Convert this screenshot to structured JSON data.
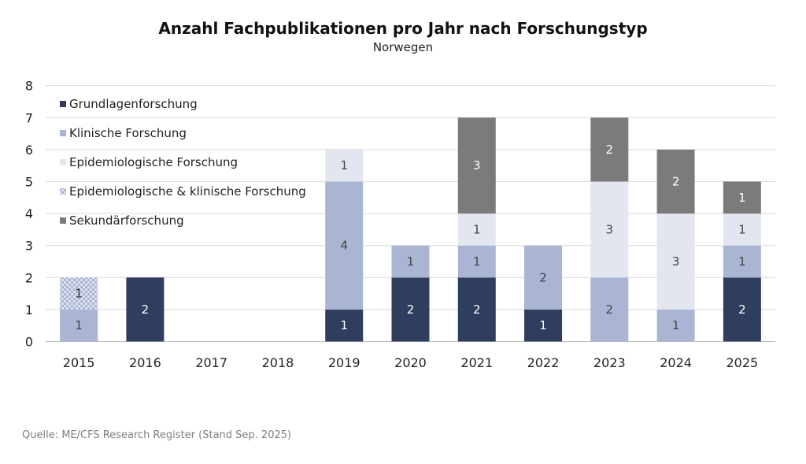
{
  "chart_data": {
    "type": "bar",
    "stacked": true,
    "title": "Anzahl Fachpublikationen pro Jahr nach Forschungstyp",
    "subtitle": "Norwegen",
    "source": "Quelle: ME/CFS Research Register (Stand Sep. 2025)",
    "categories": [
      "2015",
      "2016",
      "2017",
      "2018",
      "2019",
      "2020",
      "2021",
      "2022",
      "2023",
      "2024",
      "2025"
    ],
    "ylim": [
      0,
      8
    ],
    "yticks": [
      0,
      1,
      2,
      3,
      4,
      5,
      6,
      7,
      8
    ],
    "grid": true,
    "legend_position": "top-left",
    "series": [
      {
        "name": "Grundlagenforschung",
        "color": "#2f3d5e",
        "label_color": "#ffffff",
        "values": [
          0,
          2,
          0,
          0,
          1,
          2,
          2,
          1,
          0,
          0,
          2
        ]
      },
      {
        "name": "Klinische Forschung",
        "color": "#aab5d3",
        "label_color": "#444444",
        "values": [
          1,
          0,
          0,
          0,
          4,
          1,
          1,
          2,
          2,
          1,
          1
        ]
      },
      {
        "name": "Epidemiologische Forschung",
        "color": "#e3e6ef",
        "label_color": "#444444",
        "values": [
          0,
          0,
          0,
          0,
          1,
          0,
          1,
          0,
          3,
          3,
          1
        ]
      },
      {
        "name": "Epidemiologische & klinische Forschung",
        "color": "#c4cde3",
        "pattern": "checker",
        "label_color": "#333333",
        "values": [
          1,
          0,
          0,
          0,
          0,
          0,
          0,
          0,
          0,
          0,
          0
        ]
      },
      {
        "name": "Sekundärforschung",
        "color": "#7b7b7b",
        "label_color": "#ffffff",
        "values": [
          0,
          0,
          0,
          0,
          0,
          0,
          3,
          0,
          2,
          2,
          1
        ]
      }
    ]
  }
}
